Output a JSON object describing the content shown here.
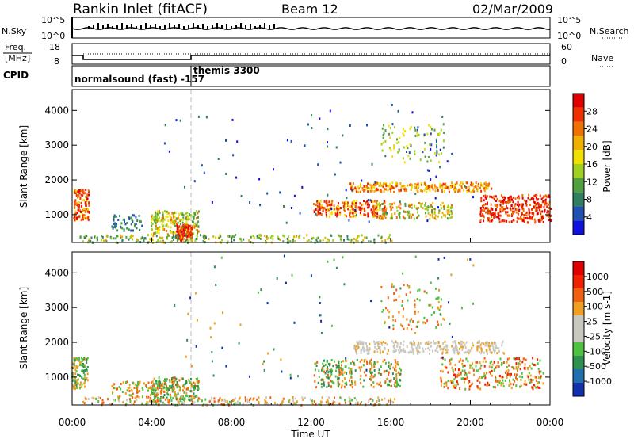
{
  "header": {
    "station": "Rankin Inlet (fitACF)",
    "beam": "Beam 12",
    "date": "02/Mar/2009"
  },
  "aux_panels": {
    "nsky_label": "N.Sky",
    "nsearch_label": "N.Search",
    "log_top": "10^5",
    "log_bottom": "10^0",
    "freq_label_line1": "Freq.",
    "freq_label_line2": "[MHz]",
    "freq_ticks": [
      "18",
      "8"
    ],
    "nave_label": "Nave",
    "nave_ticks": [
      "60",
      "0"
    ],
    "cpid_label": "CPID",
    "cpid_mode_1": "normalsound (fast) -157",
    "cpid_mode_2": "themis 3300"
  },
  "chart_data": [
    {
      "type": "heatmap",
      "name": "power",
      "ylabel": "Slant Range [km]",
      "y_ticks": [
        "1000",
        "2000",
        "3000",
        "4000"
      ],
      "ylim": [
        200,
        4600
      ],
      "colorbar_label": "Power [dB]",
      "colorbar_ticks": [
        "28",
        "24",
        "20",
        "16",
        "12",
        "8",
        "4"
      ],
      "colors": [
        "#1010e0",
        "#2050b0",
        "#308060",
        "#50a040",
        "#a0d020",
        "#f0e000",
        "#f0b000",
        "#f07000",
        "#f03000",
        "#e00000"
      ],
      "grid": false
    },
    {
      "type": "heatmap",
      "name": "velocity",
      "ylabel": "Slant Range [km]",
      "y_ticks": [
        "1000",
        "2000",
        "3000",
        "4000"
      ],
      "ylim": [
        200,
        4600
      ],
      "colorbar_label": "Velocity [m s-1]",
      "colorbar_ticks": [
        "1000",
        "500",
        "100",
        "25",
        "-25",
        "-100",
        "-500",
        "-1000"
      ],
      "colors": [
        "#1030b0",
        "#2070b0",
        "#309050",
        "#50c040",
        "#c8c8c0",
        "#c8c8c0",
        "#f0a020",
        "#f06010",
        "#f02000",
        "#e00000"
      ],
      "grid": false
    }
  ],
  "x_axis": {
    "ticks": [
      "00:00",
      "04:00",
      "08:00",
      "12:00",
      "16:00",
      "20:00",
      "00:00"
    ],
    "label": "Time UT"
  }
}
